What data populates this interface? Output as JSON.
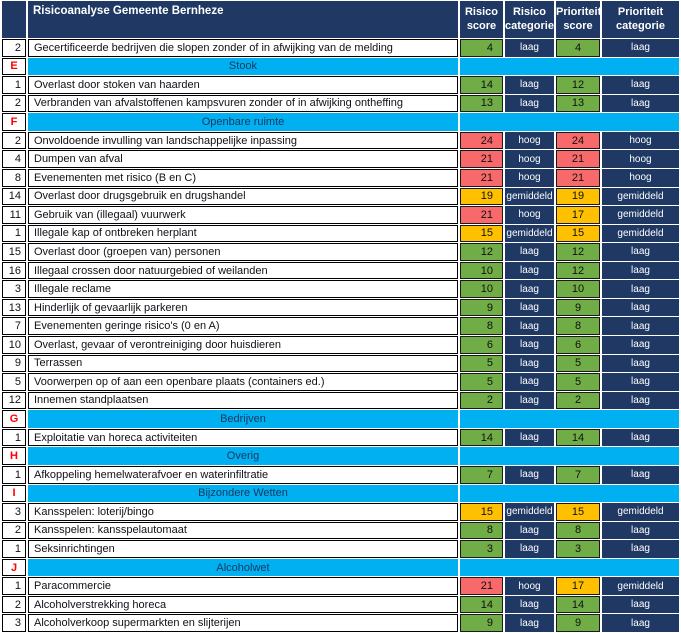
{
  "title": "Risicoanalyse Gemeente Bernheze",
  "columns": [
    "Risico score",
    "Risico categorie",
    "Prioriteit score",
    "Prioriteit categorie"
  ],
  "theme": {
    "navy": "#1F3864",
    "cyan": "#00B0F0",
    "letter_red": "#FF0000"
  },
  "category_colors": {
    "laag": "#70AD47",
    "gemiddeld": "#FFC000",
    "hoog": "#F8696B"
  },
  "rows": [
    {
      "type": "data",
      "num": "2",
      "label": "Gecertificeerde bedrijven die slopen zonder of in afwijking van de melding",
      "risico_score": "4",
      "risico_categorie": "laag",
      "prioriteit_score": "4",
      "prioriteit_categorie": "laag"
    },
    {
      "type": "section",
      "letter": "E",
      "title": "Stook"
    },
    {
      "type": "data",
      "num": "1",
      "label": "Overlast door stoken van haarden",
      "risico_score": "14",
      "risico_categorie": "laag",
      "prioriteit_score": "12",
      "prioriteit_categorie": "laag"
    },
    {
      "type": "data",
      "num": "2",
      "label": "Verbranden van afvalstoffenen kampsvuren  zonder of in afwijking ontheffing",
      "risico_score": "13",
      "risico_categorie": "laag",
      "prioriteit_score": "13",
      "prioriteit_categorie": "laag"
    },
    {
      "type": "section",
      "letter": "F",
      "title": "Openbare ruimte"
    },
    {
      "type": "data",
      "num": "2",
      "label": "Onvoldoende invulling van landschappelijke inpassing",
      "risico_score": "24",
      "risico_categorie": "hoog",
      "prioriteit_score": "24",
      "prioriteit_categorie": "hoog"
    },
    {
      "type": "data",
      "num": "4",
      "label": "Dumpen van afval",
      "risico_score": "21",
      "risico_categorie": "hoog",
      "prioriteit_score": "21",
      "prioriteit_categorie": "hoog"
    },
    {
      "type": "data",
      "num": "8",
      "label": "Evenementen met risico (B en C)",
      "risico_score": "21",
      "risico_categorie": "hoog",
      "prioriteit_score": "21",
      "prioriteit_categorie": "hoog"
    },
    {
      "type": "data",
      "num": "14",
      "label": "Overlast door drugsgebruik en drugshandel",
      "risico_score": "19",
      "risico_categorie": "gemiddeld",
      "prioriteit_score": "19",
      "prioriteit_categorie": "gemiddeld"
    },
    {
      "type": "data",
      "num": "11",
      "label": "Gebruik van (illegaal) vuurwerk",
      "risico_score": "21",
      "risico_categorie": "hoog",
      "prioriteit_score": "17",
      "prioriteit_categorie": "gemiddeld"
    },
    {
      "type": "data",
      "num": "1",
      "label": "Illegale kap of ontbreken herplant",
      "risico_score": "15",
      "risico_categorie": "gemiddeld",
      "prioriteit_score": "15",
      "prioriteit_categorie": "gemiddeld"
    },
    {
      "type": "data",
      "num": "15",
      "label": "Overlast door (groepen van) personen",
      "risico_score": "12",
      "risico_categorie": "laag",
      "prioriteit_score": "12",
      "prioriteit_categorie": "laag"
    },
    {
      "type": "data",
      "num": "16",
      "label": "Illegaal crossen door natuurgebied of weilanden",
      "risico_score": "10",
      "risico_categorie": "laag",
      "prioriteit_score": "12",
      "prioriteit_categorie": "laag"
    },
    {
      "type": "data",
      "num": "3",
      "label": "Illegale reclame",
      "risico_score": "10",
      "risico_categorie": "laag",
      "prioriteit_score": "10",
      "prioriteit_categorie": "laag"
    },
    {
      "type": "data",
      "num": "13",
      "label": "Hinderlijk of gevaarlijk parkeren",
      "risico_score": "9",
      "risico_categorie": "laag",
      "prioriteit_score": "9",
      "prioriteit_categorie": "laag"
    },
    {
      "type": "data",
      "num": "7",
      "label": "Evenementen geringe risico's (0 en A)",
      "risico_score": "8",
      "risico_categorie": "laag",
      "prioriteit_score": "8",
      "prioriteit_categorie": "laag"
    },
    {
      "type": "data",
      "num": "10",
      "label": "Overlast, gevaar of verontreiniging door huisdieren",
      "risico_score": "6",
      "risico_categorie": "laag",
      "prioriteit_score": "6",
      "prioriteit_categorie": "laag"
    },
    {
      "type": "data",
      "num": "9",
      "label": "Terrassen",
      "risico_score": "5",
      "risico_categorie": "laag",
      "prioriteit_score": "5",
      "prioriteit_categorie": "laag"
    },
    {
      "type": "data",
      "num": "5",
      "label": "Voorwerpen op of aan een openbare plaats (containers ed.)",
      "risico_score": "5",
      "risico_categorie": "laag",
      "prioriteit_score": "5",
      "prioriteit_categorie": "laag"
    },
    {
      "type": "data",
      "num": "12",
      "label": "Innemen standplaatsen",
      "risico_score": "2",
      "risico_categorie": "laag",
      "prioriteit_score": "2",
      "prioriteit_categorie": "laag"
    },
    {
      "type": "section",
      "letter": "G",
      "title": "Bedrijven"
    },
    {
      "type": "data",
      "num": "1",
      "label": "Exploitatie van horeca activiteiten",
      "risico_score": "14",
      "risico_categorie": "laag",
      "prioriteit_score": "14",
      "prioriteit_categorie": "laag"
    },
    {
      "type": "section",
      "letter": "H",
      "title": "Overig"
    },
    {
      "type": "data",
      "num": "1",
      "label": "Afkoppeling hemelwaterafvoer en waterinfiltratie",
      "risico_score": "7",
      "risico_categorie": "laag",
      "prioriteit_score": "7",
      "prioriteit_categorie": "laag"
    },
    {
      "type": "section",
      "letter": "I",
      "title": "Bijzondere Wetten"
    },
    {
      "type": "data",
      "num": "3",
      "label": "Kansspelen: loterij/bingo",
      "risico_score": "15",
      "risico_categorie": "gemiddeld",
      "prioriteit_score": "15",
      "prioriteit_categorie": "gemiddeld"
    },
    {
      "type": "data",
      "num": "2",
      "label": "Kansspelen: kansspelautomaat",
      "risico_score": "8",
      "risico_categorie": "laag",
      "prioriteit_score": "8",
      "prioriteit_categorie": "laag"
    },
    {
      "type": "data",
      "num": "1",
      "label": "Seksinrichtingen",
      "risico_score": "3",
      "risico_categorie": "laag",
      "prioriteit_score": "3",
      "prioriteit_categorie": "laag"
    },
    {
      "type": "section",
      "letter": "J",
      "title": "Alcoholwet"
    },
    {
      "type": "data",
      "num": "1",
      "label": "Paracommercie",
      "risico_score": "21",
      "risico_categorie": "hoog",
      "prioriteit_score": "17",
      "prioriteit_categorie": "gemiddeld"
    },
    {
      "type": "data",
      "num": "2",
      "label": "Alcoholverstrekking horeca",
      "risico_score": "14",
      "risico_categorie": "laag",
      "prioriteit_score": "14",
      "prioriteit_categorie": "laag"
    },
    {
      "type": "data",
      "num": "3",
      "label": "Alcoholverkoop supermarkten en slijterijen",
      "risico_score": "9",
      "risico_categorie": "laag",
      "prioriteit_score": "9",
      "prioriteit_categorie": "laag"
    }
  ]
}
